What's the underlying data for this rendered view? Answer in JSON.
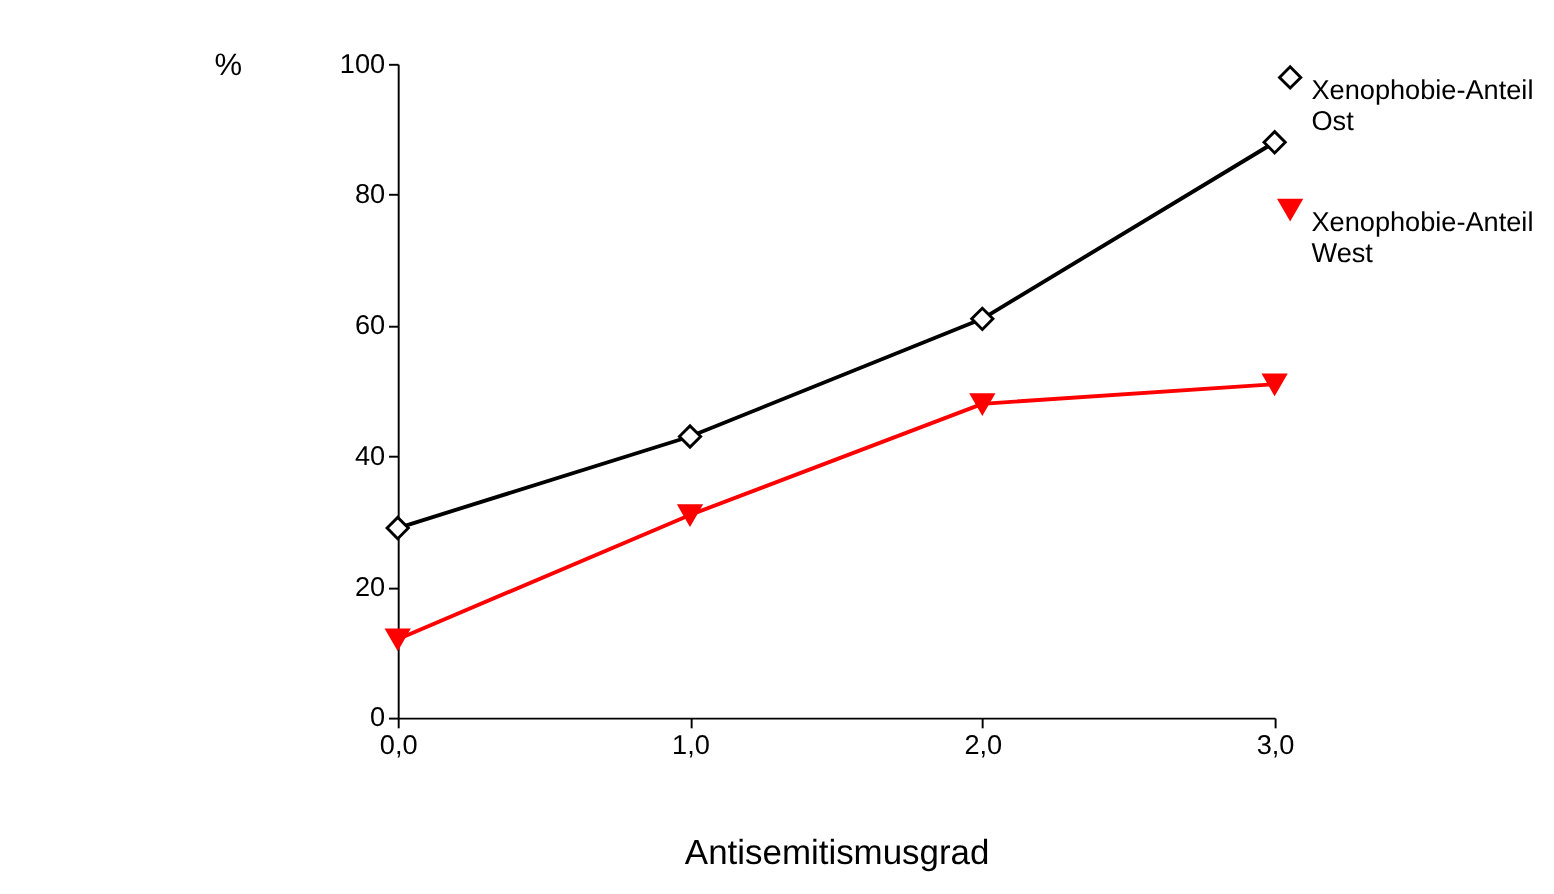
{
  "chart_data": {
    "type": "line",
    "xlabel": "Antisemitismusgrad",
    "ylabel": "%",
    "x": [
      0,
      1,
      2,
      3
    ],
    "series": [
      {
        "name": "Xenophobie-Anteil Ost",
        "color": "#000000",
        "marker": "diamond",
        "values": [
          29,
          43,
          61,
          88
        ]
      },
      {
        "name": "Xenophobie-Anteil West",
        "color": "#ff0000",
        "marker": "triangle",
        "values": [
          12,
          31,
          48,
          51
        ]
      }
    ],
    "xlim": [
      0,
      3
    ],
    "xticks": [
      {
        "value": 0,
        "label": "0,0"
      },
      {
        "value": 1,
        "label": "1,0"
      },
      {
        "value": 2,
        "label": "2,0"
      },
      {
        "value": 3,
        "label": "3,0"
      }
    ],
    "ylim": [
      0,
      100
    ],
    "yticks": [
      0,
      20,
      40,
      60,
      80,
      100
    ],
    "grid": false,
    "legend": "right"
  }
}
